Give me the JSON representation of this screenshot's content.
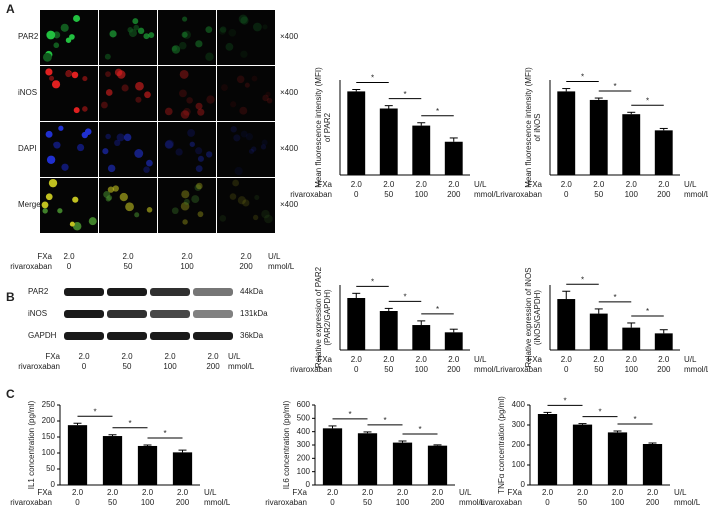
{
  "panel_labels": [
    "A",
    "B",
    "C"
  ],
  "microscopy": {
    "rows": [
      "PAR2",
      "iNOS",
      "DAPI",
      "Merge"
    ],
    "magnification": "×400"
  },
  "blot": {
    "rows": [
      {
        "label": "PAR2",
        "size": "44kDa"
      },
      {
        "label": "iNOS",
        "size": "131kDa"
      },
      {
        "label": "GAPDH",
        "size": "36kDa"
      }
    ]
  },
  "x_rows": {
    "fxa_label": "FXa",
    "fxa_values": [
      "2.0",
      "2.0",
      "2.0",
      "2.0"
    ],
    "fxa_unit": "U/L",
    "riva_label": "rivaroxaban",
    "riva_values": [
      "0",
      "50",
      "100",
      "200"
    ],
    "riva_unit": "mmol/L"
  },
  "chart_data": [
    {
      "type": "bar",
      "ylabel": [
        "Mean fluorescence intensity (MFI)",
        "of PAR2"
      ],
      "categories": [
        "0",
        "50",
        "100",
        "200"
      ],
      "values": [
        88,
        70,
        52,
        35
      ],
      "errors": [
        2,
        3,
        3,
        4
      ],
      "color": "#000000",
      "ylim": [
        0,
        100
      ],
      "annotations": [
        "*",
        "*",
        "*"
      ]
    },
    {
      "type": "bar",
      "ylabel": [
        "Mean fluorescence intensity (MFI)",
        "of iNOS"
      ],
      "categories": [
        "0",
        "50",
        "100",
        "200"
      ],
      "values": [
        88,
        79,
        64,
        47
      ],
      "errors": [
        3,
        2,
        2,
        2
      ],
      "color": "#000000",
      "ylim": [
        0,
        100
      ],
      "annotations": [
        "*",
        "*",
        "*"
      ]
    },
    {
      "type": "bar",
      "ylabel": [
        "Relative expression of PAR2",
        "(PAR2/GAPDH)"
      ],
      "categories": [
        "0",
        "50",
        "100",
        "200"
      ],
      "values": [
        100,
        75,
        48,
        34
      ],
      "errors": [
        9,
        5,
        8,
        6
      ],
      "color": "#000000",
      "ylim": [
        0,
        125
      ],
      "annotations": [
        "*",
        "*",
        "*"
      ]
    },
    {
      "type": "bar",
      "ylabel": [
        "Relative expression of iNOS",
        "(iNOS/GAPDH)"
      ],
      "categories": [
        "0",
        "50",
        "100",
        "200"
      ],
      "values": [
        98,
        70,
        43,
        32
      ],
      "errors": [
        15,
        9,
        9,
        7
      ],
      "color": "#000000",
      "ylim": [
        0,
        125
      ],
      "annotations": [
        "*",
        "*",
        "*"
      ]
    },
    {
      "type": "bar",
      "ylabel": [
        "IL1 concentration (pg/ml)"
      ],
      "categories": [
        "0",
        "50",
        "100",
        "200"
      ],
      "values": [
        187,
        153,
        122,
        102
      ],
      "errors": [
        6,
        4,
        3,
        7
      ],
      "color": "#000000",
      "ylim": [
        0,
        250
      ],
      "yticks": [
        0,
        50,
        100,
        150,
        200,
        250
      ],
      "annotations": [
        "*",
        "*",
        "*"
      ]
    },
    {
      "type": "bar",
      "ylabel": [
        "IL6 concentration (pg/ml)"
      ],
      "categories": [
        "0",
        "50",
        "100",
        "200"
      ],
      "values": [
        425,
        388,
        318,
        295
      ],
      "errors": [
        18,
        10,
        12,
        6
      ],
      "color": "#000000",
      "ylim": [
        0,
        600
      ],
      "yticks": [
        0,
        100,
        200,
        300,
        400,
        500,
        600
      ],
      "annotations": [
        "*",
        "*",
        "*"
      ]
    },
    {
      "type": "bar",
      "ylabel": [
        "TNFα concentration (pg/ml)"
      ],
      "categories": [
        "0",
        "50",
        "100",
        "200"
      ],
      "values": [
        355,
        302,
        263,
        205
      ],
      "errors": [
        8,
        5,
        7,
        5
      ],
      "color": "#000000",
      "ylim": [
        0,
        400
      ],
      "yticks": [
        0,
        100,
        200,
        300,
        400
      ],
      "annotations": [
        "*",
        "*",
        "*"
      ]
    }
  ]
}
